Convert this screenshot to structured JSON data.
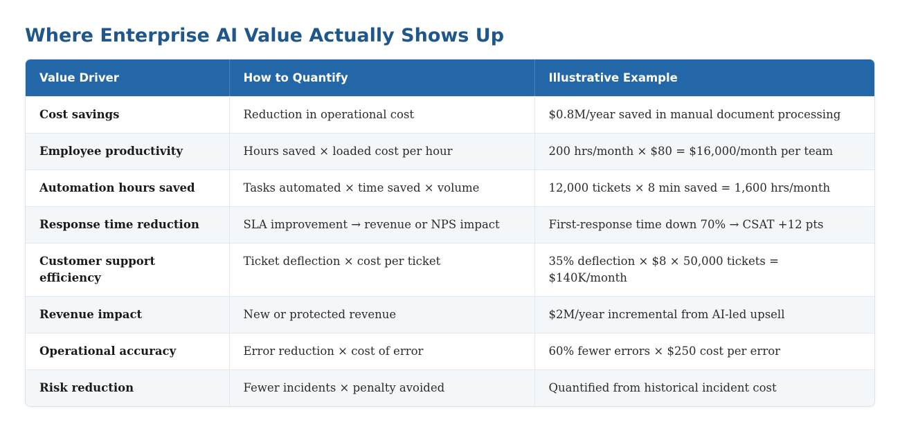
{
  "title": "Where Enterprise AI Value Actually Shows Up",
  "columns": [
    "Value Driver",
    "How to Quantify",
    "Illustrative Example"
  ],
  "rows": [
    [
      "Cost savings",
      "Reduction in operational cost",
      "$0.8M/year saved in manual document processing"
    ],
    [
      "Employee productivity",
      "Hours saved × loaded cost per hour",
      "200 hrs/month × $80 = $16,000/month per team"
    ],
    [
      "Automation hours saved",
      "Tasks automated × time saved × volume",
      "12,000 tickets × 8 min saved = 1,600 hrs/month"
    ],
    [
      "Response time reduction",
      "SLA improvement → revenue or NPS impact",
      "First-response time down 70% → CSAT +12 pts"
    ],
    [
      "Customer support efficiency",
      "Ticket deflection × cost per ticket",
      "35% deflection × $8 × 50,000 tickets = $140K/month"
    ],
    [
      "Revenue impact",
      "New or protected revenue",
      "$2M/year incremental from AI-led upsell"
    ],
    [
      "Operational accuracy",
      "Error reduction × cost of error",
      "60% fewer errors × $250 cost per error"
    ],
    [
      "Risk reduction",
      "Fewer incidents × penalty avoided",
      "Quantified from historical incident cost"
    ]
  ],
  "colors": {
    "title": "#1f578a",
    "header_bg": "#2467a8",
    "row_alt_bg": "#f4f7fa"
  }
}
